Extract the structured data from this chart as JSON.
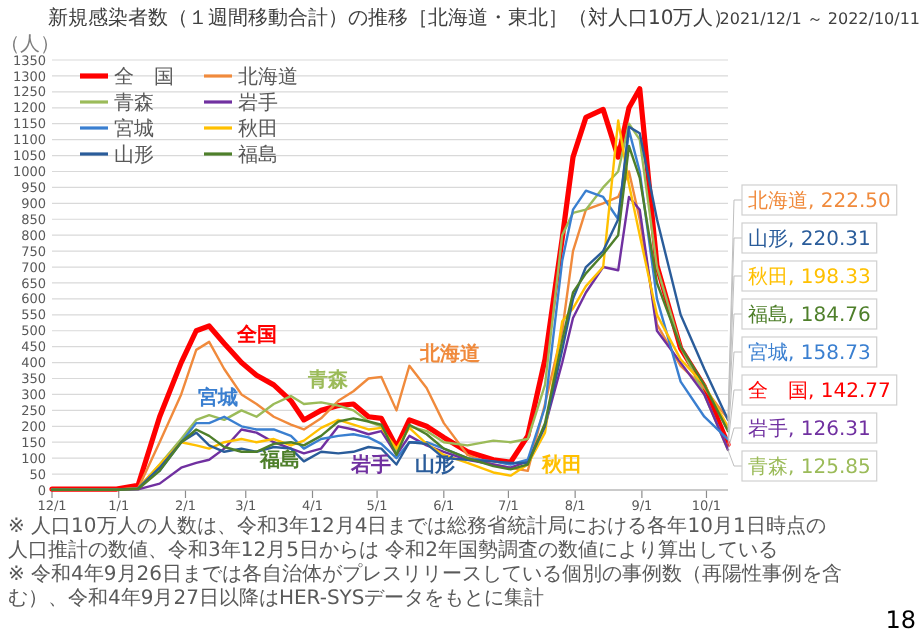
{
  "chart_data": {
    "type": "line",
    "title": "新規感染者数（１週間移動合計）の推移［北海道・東北］（対人口10万人）",
    "subtitle": "2021/12/1 ～ 2022/10/11",
    "ylabel": "（人）",
    "x": [
      "2021-12-01",
      "2021-12-31",
      "2022-01-10",
      "2022-01-20",
      "2022-01-30",
      "2022-02-06",
      "2022-02-12",
      "2022-02-19",
      "2022-02-27",
      "2022-03-06",
      "2022-03-14",
      "2022-03-22",
      "2022-03-28",
      "2022-04-05",
      "2022-04-13",
      "2022-04-20",
      "2022-04-27",
      "2022-05-03",
      "2022-05-10",
      "2022-05-16",
      "2022-05-24",
      "2022-06-01",
      "2022-06-12",
      "2022-06-24",
      "2022-07-02",
      "2022-07-10",
      "2022-07-18",
      "2022-07-26",
      "2022-07-31",
      "2022-08-06",
      "2022-08-14",
      "2022-08-21",
      "2022-08-26",
      "2022-08-31",
      "2022-09-08",
      "2022-09-19",
      "2022-09-30",
      "2022-10-11"
    ],
    "xlim": [
      "2021-12-01",
      "2022-10-11"
    ],
    "ylim": [
      0,
      1350
    ],
    "yticks": [
      0,
      50,
      100,
      150,
      200,
      250,
      300,
      350,
      400,
      450,
      500,
      550,
      600,
      650,
      700,
      750,
      800,
      850,
      900,
      950,
      1000,
      1050,
      1100,
      1150,
      1200,
      1250,
      1300,
      1350
    ],
    "xticks": [
      {
        "value": "2021-12-01",
        "label": "12/1"
      },
      {
        "value": "2022-01-01",
        "label": "1/1"
      },
      {
        "value": "2022-02-01",
        "label": "2/1"
      },
      {
        "value": "2022-03-01",
        "label": "3/1"
      },
      {
        "value": "2022-04-01",
        "label": "4/1"
      },
      {
        "value": "2022-05-01",
        "label": "5/1"
      },
      {
        "value": "2022-06-01",
        "label": "6/1"
      },
      {
        "value": "2022-07-01",
        "label": "7/1"
      },
      {
        "value": "2022-08-01",
        "label": "8/1"
      },
      {
        "value": "2022-09-01",
        "label": "9/1"
      },
      {
        "value": "2022-10-01",
        "label": "10/1"
      }
    ],
    "grid": "y",
    "legend": "top left",
    "marker": "none",
    "line_style": "solid",
    "series": [
      {
        "name": "全　国",
        "color": "#ff0000",
        "values": [
          3,
          3,
          15,
          230,
          400,
          500,
          515,
          460,
          400,
          360,
          330,
          280,
          220,
          250,
          265,
          270,
          230,
          225,
          135,
          220,
          200,
          165,
          120,
          95,
          87,
          170,
          410,
          790,
          1045,
          1170,
          1195,
          1045,
          1200,
          1260,
          705,
          445,
          325,
          142.77
        ]
      },
      {
        "name": "北海道",
        "color": "#f08a3c",
        "values": [
          2,
          2,
          5,
          150,
          300,
          440,
          465,
          380,
          300,
          270,
          230,
          205,
          190,
          225,
          280,
          310,
          350,
          355,
          250,
          390,
          320,
          210,
          110,
          80,
          70,
          60,
          270,
          500,
          750,
          880,
          900,
          920,
          1000,
          850,
          520,
          390,
          320,
          222.5
        ]
      },
      {
        "name": "青森",
        "color": "#9bbb59",
        "values": [
          2,
          2,
          5,
          80,
          160,
          220,
          235,
          220,
          250,
          230,
          270,
          295,
          270,
          275,
          265,
          250,
          215,
          200,
          120,
          200,
          185,
          150,
          140,
          155,
          150,
          160,
          330,
          800,
          870,
          880,
          950,
          1000,
          1150,
          1100,
          700,
          450,
          300,
          125.85
        ]
      },
      {
        "name": "岩手",
        "color": "#7030a0",
        "values": [
          1,
          1,
          2,
          20,
          70,
          85,
          95,
          130,
          190,
          180,
          150,
          130,
          115,
          130,
          200,
          190,
          175,
          185,
          110,
          170,
          140,
          120,
          95,
          80,
          70,
          90,
          200,
          400,
          540,
          620,
          700,
          690,
          920,
          880,
          500,
          400,
          300,
          126.31
        ]
      },
      {
        "name": "宮城",
        "color": "#3a7fd0",
        "values": [
          null,
          null,
          null,
          60,
          150,
          210,
          210,
          230,
          200,
          190,
          190,
          170,
          130,
          160,
          170,
          175,
          165,
          145,
          100,
          150,
          150,
          130,
          100,
          90,
          80,
          95,
          260,
          720,
          880,
          940,
          920,
          850,
          1130,
          1000,
          600,
          340,
          230,
          158.73
        ]
      },
      {
        "name": "秋田",
        "color": "#ffc000",
        "values": [
          1,
          1,
          5,
          80,
          150,
          140,
          130,
          150,
          160,
          150,
          160,
          140,
          155,
          195,
          220,
          205,
          190,
          195,
          130,
          195,
          145,
          110,
          85,
          55,
          45,
          80,
          180,
          530,
          570,
          640,
          700,
          1160,
          960,
          800,
          550,
          410,
          330,
          198.33
        ]
      },
      {
        "name": "山形",
        "color": "#2a5c9a",
        "values": [
          1,
          1,
          5,
          70,
          150,
          180,
          140,
          120,
          130,
          120,
          135,
          130,
          90,
          120,
          115,
          120,
          135,
          130,
          80,
          150,
          145,
          100,
          95,
          90,
          85,
          85,
          200,
          440,
          600,
          700,
          750,
          850,
          1140,
          1120,
          850,
          550,
          380,
          220.31
        ]
      },
      {
        "name": "福島",
        "color": "#4e7f2a",
        "values": [
          1,
          1,
          3,
          60,
          150,
          190,
          170,
          135,
          120,
          120,
          145,
          150,
          140,
          170,
          215,
          225,
          215,
          205,
          110,
          205,
          175,
          130,
          100,
          75,
          65,
          80,
          210,
          470,
          620,
          680,
          740,
          800,
          1080,
          980,
          650,
          450,
          330,
          184.76
        ]
      }
    ],
    "annotations": [
      "全国",
      "北海道",
      "青森",
      "岩手",
      "宮城",
      "秋田",
      "山形",
      "福島",
      {
        "text": "全　国, 142.77",
        "x": "2022-10-11",
        "y": 142.77
      },
      {
        "text": "北海道, 222.50",
        "x": "2022-10-11",
        "y": 222.5
      },
      {
        "text": "青森, 125.85",
        "x": "2022-10-11",
        "y": 125.85
      },
      {
        "text": "岩手, 126.31",
        "x": "2022-10-11",
        "y": 126.31
      },
      {
        "text": "宮城, 158.73",
        "x": "2022-10-11",
        "y": 158.73
      },
      {
        "text": "秋田, 198.33",
        "x": "2022-10-11",
        "y": 198.33
      },
      {
        "text": "山形, 220.31",
        "x": "2022-10-11",
        "y": 220.31
      },
      {
        "text": "福島, 184.76",
        "x": "2022-10-11",
        "y": 184.76
      },
      "※ 人口10万人の人数は、令和3年12月4日までは総務省統計局における各年10月1日時点の人口推計の数値、令和3年12月5日からは 令和2年国勢調査の数値により算出している",
      "※ 令和4年9月26日までは各自治体がプレスリリースしている個別の事例数（再陽性事例を含む）、令和4年9月27日以降はHER-SYSデータをもとに集計",
      "18"
    ]
  }
}
